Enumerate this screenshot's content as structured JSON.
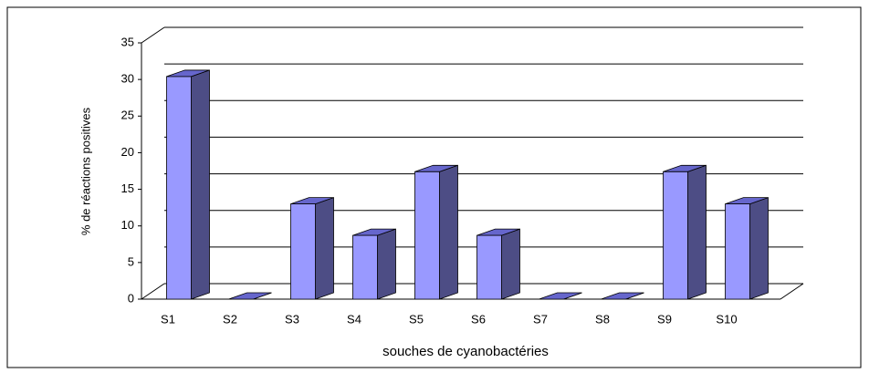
{
  "chart_data": {
    "type": "bar3d",
    "categories": [
      "S1",
      "S2",
      "S3",
      "S4",
      "S5",
      "S6",
      "S7",
      "S8",
      "S9",
      "S10"
    ],
    "values": [
      30.4,
      0,
      13,
      8.7,
      17.4,
      8.7,
      0,
      0,
      17.4,
      13
    ],
    "color": "#9999ff",
    "ylim": [
      0,
      35
    ],
    "yticks": [
      0,
      5,
      10,
      15,
      20,
      25,
      30,
      35
    ],
    "grid": true,
    "y_label": "% de réactions positives",
    "x_label": "souches de cyanobactéries"
  }
}
